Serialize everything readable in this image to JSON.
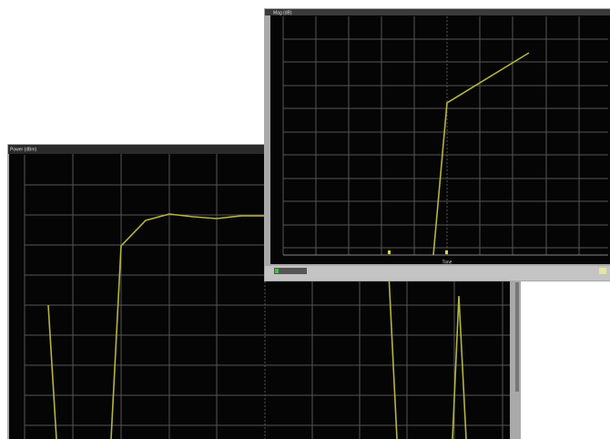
{
  "windows": [
    {
      "title": "Power (dBm)"
    },
    {
      "title": "Mag (dB)",
      "x_axis_label": "Time"
    }
  ]
}
